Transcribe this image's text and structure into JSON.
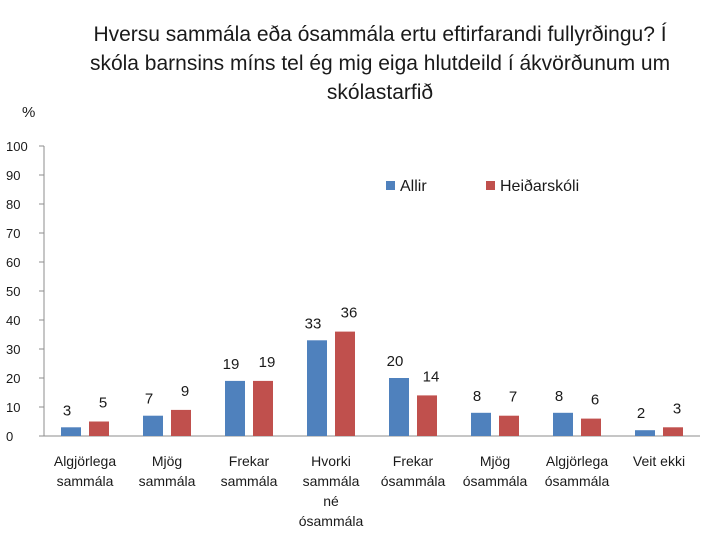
{
  "chart_data": {
    "type": "bar",
    "title": "Hversu sammála eða ósammála ertu eftirfarandi fullyrðingu? Í skóla barnsins míns tel ég mig eiga hlutdeild í ákvörðunum um skólastarfið",
    "ylabel": "%",
    "xlabel": "",
    "ylim": [
      0,
      100
    ],
    "yticks": [
      0,
      10,
      20,
      30,
      40,
      50,
      60,
      70,
      80,
      90,
      100
    ],
    "ytick_labels": [
      "0",
      "10",
      "20",
      "30",
      "40",
      "50",
      "60",
      "70",
      "80",
      "90",
      "100"
    ],
    "grid": false,
    "legend_position": "top-right",
    "categories": [
      [
        "Algjörlega",
        "sammála"
      ],
      [
        "Mjög",
        "sammála"
      ],
      [
        "Frekar",
        "sammála"
      ],
      [
        "Hvorki",
        "sammála",
        "né",
        "ósammála"
      ],
      [
        "Frekar",
        "ósammála"
      ],
      [
        "Mjög",
        "ósammála"
      ],
      [
        "Algjörlega",
        "ósammála"
      ],
      [
        "Veit ekki"
      ]
    ],
    "series": [
      {
        "name": "Allir",
        "color": "#4f81bd",
        "values": [
          3,
          7,
          19,
          33,
          20,
          8,
          8,
          2
        ]
      },
      {
        "name": "Heiðarskóli",
        "color": "#c0504d",
        "values": [
          5,
          9,
          19,
          36,
          14,
          7,
          6,
          3
        ]
      }
    ]
  }
}
